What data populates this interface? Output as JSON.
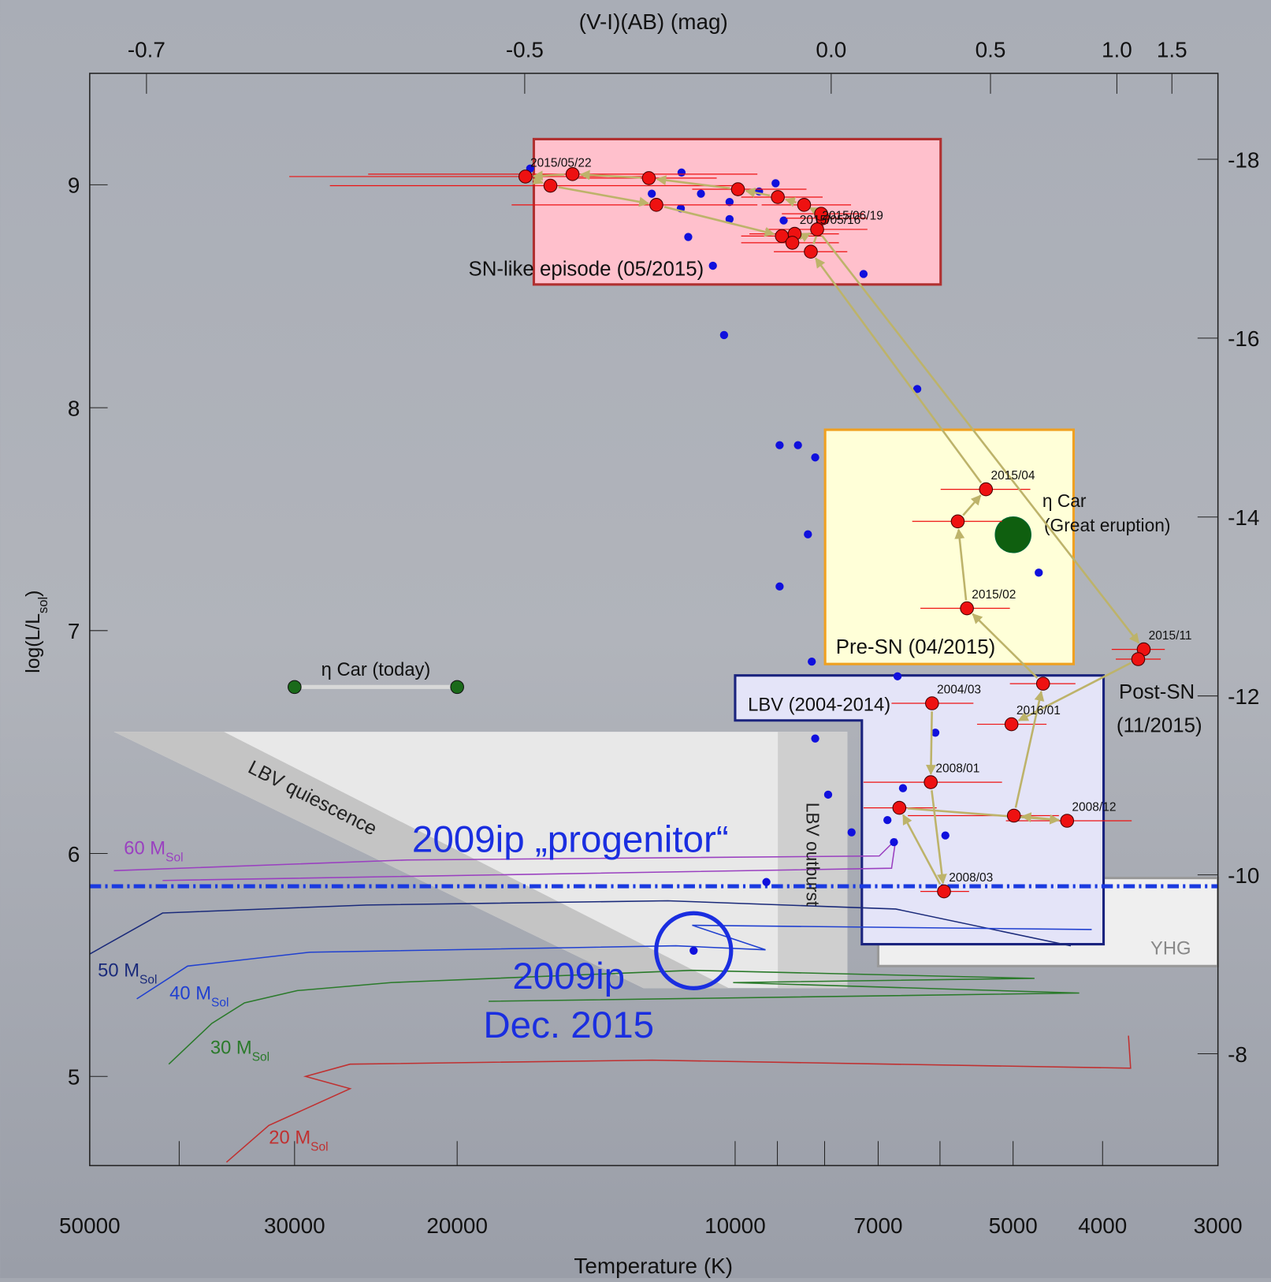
{
  "chart_data": {
    "type": "scatter",
    "x_label": "Temperature (K)",
    "y_label": "log(L/L",
    "y_label_sub": "sol",
    "y_label_end": ")",
    "x2_label": "(V-I)(AB) (mag)",
    "xscale": "log",
    "xlim": [
      50000,
      3000
    ],
    "ylim": [
      4.6,
      9.5
    ],
    "xticks": [
      50000,
      30000,
      20000,
      10000,
      7000,
      5000,
      4000,
      3000
    ],
    "xminorticks": [
      40000,
      9000,
      8000,
      6000
    ],
    "yticks": [
      5,
      6,
      7,
      8,
      9
    ],
    "x2ticks": [
      {
        "value": 43400,
        "label": "-0.7"
      },
      {
        "value": 16900,
        "label": "-0.5"
      },
      {
        "value": 7870,
        "label": "0.0"
      },
      {
        "value": 5290,
        "label": "0.5"
      },
      {
        "value": 3860,
        "label": "1.0"
      },
      {
        "value": 3365,
        "label": "1.5"
      }
    ],
    "y2lim": [
      -6.75,
      -18.96
    ],
    "y2ticks": [
      -8,
      -10,
      -12,
      -14,
      -16,
      -18
    ],
    "regions": [
      {
        "fill": "#e8e8e8",
        "stroke": "none",
        "x": [
          47080,
          7560,
          7560,
          12570
        ],
        "y": [
          6.546,
          6.546,
          5.396,
          5.396
        ]
      },
      {
        "label": "LBV outburst",
        "fill": "#cfcfcf",
        "stroke": "none",
        "x": [
          8990,
          7560,
          7560,
          8990
        ],
        "y": [
          6.546,
          6.546,
          5.396,
          5.396
        ]
      },
      {
        "label": "LBV quiescence",
        "fill": "#c4c4c4",
        "stroke": "none",
        "x": [
          47080,
          35790,
          10160,
          12570
        ],
        "y": [
          6.546,
          6.546,
          5.396,
          5.396
        ]
      },
      {
        "label": "YHG",
        "fill": "#efefef",
        "stroke": "#999999",
        "x": [
          7000,
          3000,
          3000,
          7000
        ],
        "y": [
          5.89,
          5.89,
          5.495,
          5.495
        ]
      },
      {
        "label": "LBV (2004-2014)",
        "fill": "#e4e4f8",
        "stroke": "#1a237e",
        "x": [
          10000,
          3990,
          3990,
          7290,
          7290,
          10000
        ],
        "y": [
          6.799,
          6.799,
          5.593,
          5.593,
          6.597,
          6.597
        ]
      },
      {
        "label": "SN-like episode (05/2015)",
        "fill": "#ffc0cc",
        "stroke": "#b03030",
        "x": [
          16520,
          5990,
          5990,
          16520
        ],
        "y": [
          9.205,
          9.205,
          8.553,
          8.553
        ]
      },
      {
        "label": "Pre-SN (04/2015)",
        "fill": "#ffffd8",
        "stroke": "#f0a020",
        "x": [
          7990,
          4300,
          4300,
          7990
        ],
        "y": [
          7.901,
          7.901,
          6.85,
          6.85
        ]
      }
    ],
    "hline": {
      "y": 5.853,
      "color": "#1a3ae0"
    },
    "tracks": [
      {
        "name": "60 M",
        "sub": "Sol",
        "color": "#9a40c0",
        "x": [
          47080,
          22650,
          6980,
          6700,
          6770,
          41690
        ],
        "y": [
          5.923,
          5.971,
          5.989,
          6.062,
          5.934,
          5.879
        ]
      },
      {
        "name": "50 M",
        "sub": "Sol",
        "color": "#1a2a7a",
        "x": [
          50000,
          41690,
          25060,
          11830,
          6700,
          4330
        ],
        "y": [
          5.549,
          5.733,
          5.769,
          5.788,
          5.751,
          5.586
        ]
      },
      {
        "name": "40 M",
        "sub": "Sol",
        "color": "#2040d0",
        "x": [
          44460,
          39170,
          28900,
          11590,
          9270,
          11130,
          4110
        ],
        "y": [
          5.348,
          5.495,
          5.557,
          5.586,
          5.568,
          5.678,
          5.659
        ]
      },
      {
        "name": "30 M",
        "sub": "Sol",
        "color": "#2a7a2a",
        "x": [
          41050,
          36870,
          33990,
          29790,
          23590,
          11130,
          4740,
          10050,
          4240,
          18490
        ],
        "y": [
          5.055,
          5.238,
          5.33,
          5.385,
          5.421,
          5.476,
          5.44,
          5.421,
          5.374,
          5.337
        ]
      },
      {
        "name": "20 M",
        "sub": "Sol",
        "color": "#c03030",
        "x": [
          35550,
          31990,
          26120,
          29190,
          26120,
          12310,
          3730,
          3750
        ],
        "y": [
          4.615,
          4.78,
          4.945,
          5.0,
          5.055,
          5.073,
          5.037,
          5.183
        ]
      }
    ],
    "eta_car_today": {
      "label": "η Car (today)",
      "color": "#1a6a1a",
      "x": [
        30000,
        20000
      ],
      "y": [
        6.747,
        6.747
      ]
    },
    "eta_car_eruption": {
      "label": "η Car",
      "label_2": "(Great eruption)",
      "color": "#0f5f0f",
      "x": 5000,
      "y": 7.43
    },
    "series": [
      {
        "color": "#1010dd",
        "x": [
          16670,
          11430,
          12310,
          10890,
          11450,
          10140,
          9420,
          9040,
          8860,
          10140,
          11240,
          10570,
          7260,
          10280,
          6350,
          8950,
          8550,
          8190,
          8340,
          8950,
          4690,
          8260,
          6670,
          8190,
          6070,
          7930,
          6580,
          6840,
          7480,
          6730,
          5920,
          9250,
          11090
        ],
        "y": [
          9.073,
          9.055,
          8.96,
          8.96,
          8.894,
          8.923,
          8.97,
          9.007,
          8.84,
          8.846,
          8.766,
          8.637,
          8.6,
          8.326,
          8.084,
          7.832,
          7.832,
          7.777,
          7.432,
          7.198,
          7.26,
          6.861,
          6.795,
          6.516,
          6.542,
          6.264,
          6.293,
          6.15,
          6.095,
          6.051,
          6.081,
          5.872,
          5.564
        ]
      },
      {
        "color": "#ee1111",
        "arrow_color": "#bdb36a",
        "x": [
          6120,
          6140,
          5940,
          6640,
          4370,
          4990,
          4640,
          5610,
          5740,
          5350,
          8280,
          8040,
          8070,
          8420,
          8990,
          9930,
          12400,
          15000,
          16870,
          15850,
          12170,
          8900,
          8620,
          8670,
          8150,
          3610,
          3660,
          5020
        ],
        "y": [
          6.674,
          6.32,
          5.83,
          6.205,
          6.147,
          6.17,
          6.762,
          7.1,
          7.49,
          7.634,
          8.7,
          8.85,
          8.87,
          8.91,
          8.945,
          8.98,
          9.03,
          9.048,
          9.037,
          8.996,
          8.91,
          8.77,
          8.78,
          8.74,
          8.8,
          6.916,
          6.872,
          6.58
        ],
        "xerr_low": [
          6770,
          7260,
          6300,
          7260,
          5090,
          6500,
          5040,
          6300,
          6430,
          5990,
          9080,
          8810,
          8900,
          9360,
          9850,
          11130,
          15090,
          24970,
          30400,
          27470,
          17460,
          9850,
          9650,
          9850,
          9270,
          3910,
          3870,
          5470
        ],
        "xerr_high": [
          5520,
          5140,
          5580,
          6050,
          3720,
          4460,
          4280,
          5040,
          5140,
          4790,
          7560,
          7190,
          7260,
          7490,
          8040,
          8370,
          10470,
          9460,
          12560,
          10050,
          9460,
          8040,
          7720,
          7720,
          7190,
          3425,
          3460,
          4600
        ],
        "labels": [
          "2004/03",
          "2008/01",
          "2008/03",
          null,
          "2008/12",
          null,
          null,
          "2015/02",
          null,
          "2015/04",
          null,
          null,
          null,
          null,
          null,
          null,
          null,
          null,
          "2015/05/22",
          null,
          null,
          null,
          "2015/05/16",
          null,
          "2015/06/19",
          "2015/11",
          null,
          "2016/01"
        ]
      }
    ],
    "circle": {
      "x": 11090,
      "y": 5.564,
      "color": "#1a2ee0"
    },
    "annotations": [
      "2009ip „progenitor“",
      "2009ip",
      "Dec. 2015",
      "Post-SN",
      "(11/2015)"
    ]
  }
}
